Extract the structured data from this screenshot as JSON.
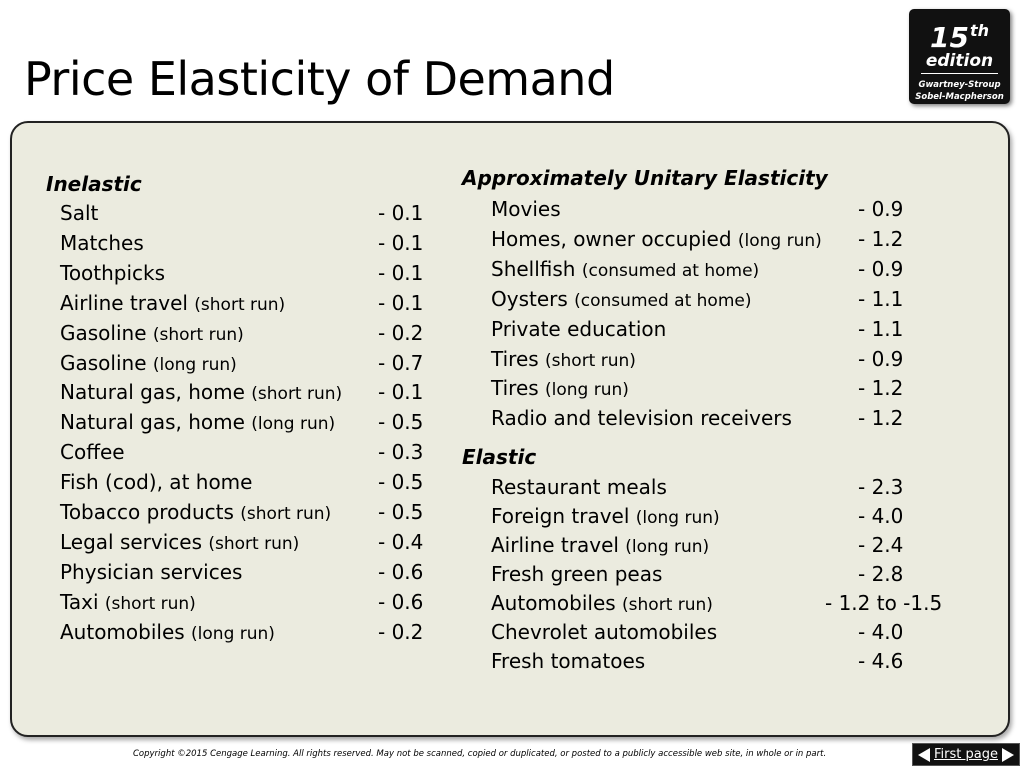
{
  "title": "Price Elasticity of Demand",
  "badge": {
    "number": "15",
    "superscript": "th",
    "edition": "edition",
    "authors_line1": "Gwartney-Stroup",
    "authors_line2": "Sobel-Macpherson"
  },
  "inelastic": {
    "heading": "Inelastic",
    "rows": [
      {
        "label": "Salt",
        "qualifier": "",
        "value": "- 0.1"
      },
      {
        "label": "Matches",
        "qualifier": "",
        "value": "- 0.1"
      },
      {
        "label": "Toothpicks",
        "qualifier": "",
        "value": "- 0.1"
      },
      {
        "label": "Airline travel ",
        "qualifier": "(short run)",
        "value": "- 0.1"
      },
      {
        "label": "Gasoline ",
        "qualifier": "(short run)",
        "value": "- 0.2"
      },
      {
        "label": "Gasoline ",
        "qualifier": "(long run)",
        "value": "- 0.7"
      },
      {
        "label": "Natural gas, home ",
        "qualifier": "(short run)",
        "value": "- 0.1"
      },
      {
        "label": "Natural gas, home ",
        "qualifier": "(long run)",
        "value": "- 0.5"
      },
      {
        "label": "Coffee",
        "qualifier": "",
        "value": "- 0.3"
      },
      {
        "label": "Fish (cod), at home",
        "qualifier": "",
        "value": "- 0.5"
      },
      {
        "label": "Tobacco products ",
        "qualifier": "(short run)",
        "value": "- 0.5"
      },
      {
        "label": "Legal services ",
        "qualifier": "(short run)",
        "value": "- 0.4"
      },
      {
        "label": "Physician services",
        "qualifier": "",
        "value": "- 0.6"
      },
      {
        "label": "Taxi ",
        "qualifier": "(short run)",
        "value": "- 0.6"
      },
      {
        "label": "Automobiles ",
        "qualifier": "(long run)",
        "value": "- 0.2"
      }
    ]
  },
  "unitary": {
    "heading": "Approximately Unitary Elasticity",
    "rows": [
      {
        "label": "Movies",
        "qualifier": "",
        "value": "- 0.9"
      },
      {
        "label": "Homes, owner occupied ",
        "qualifier": "(long run)",
        "value": "- 1.2"
      },
      {
        "label": "Shellfish ",
        "qualifier": "(consumed at home)",
        "value": "- 0.9"
      },
      {
        "label": "Oysters ",
        "qualifier": "(consumed at home)",
        "value": "- 1.1"
      },
      {
        "label": "Private education",
        "qualifier": "",
        "value": "- 1.1"
      },
      {
        "label": "Tires ",
        "qualifier": "(short run)",
        "value": "- 0.9"
      },
      {
        "label": "Tires ",
        "qualifier": "(long run)",
        "value": "- 1.2"
      },
      {
        "label": "Radio and television receivers",
        "qualifier": "",
        "value": "- 1.2"
      }
    ]
  },
  "elastic": {
    "heading": "Elastic",
    "rows": [
      {
        "label": "Restaurant meals",
        "qualifier": "",
        "value": "- 2.3"
      },
      {
        "label": "Foreign travel ",
        "qualifier": "(long run)",
        "value": "- 4.0"
      },
      {
        "label": "Airline travel ",
        "qualifier": "(long run)",
        "value": "- 2.4"
      },
      {
        "label": "Fresh green peas",
        "qualifier": "",
        "value": "- 2.8"
      },
      {
        "label": "Automobiles ",
        "qualifier": "(short run)",
        "value": "- 1.2 to -1.5"
      },
      {
        "label": "Chevrolet automobiles",
        "qualifier": "",
        "value": "- 4.0"
      },
      {
        "label": "Fresh tomatoes",
        "qualifier": "",
        "value": "- 4.6"
      }
    ]
  },
  "footer": {
    "copyright": "Copyright ©2015 Cengage Learning. All rights reserved. May not be scanned, copied or duplicated, or posted to a publicly accessible web site, in whole or in part.",
    "first_page": "First page"
  }
}
